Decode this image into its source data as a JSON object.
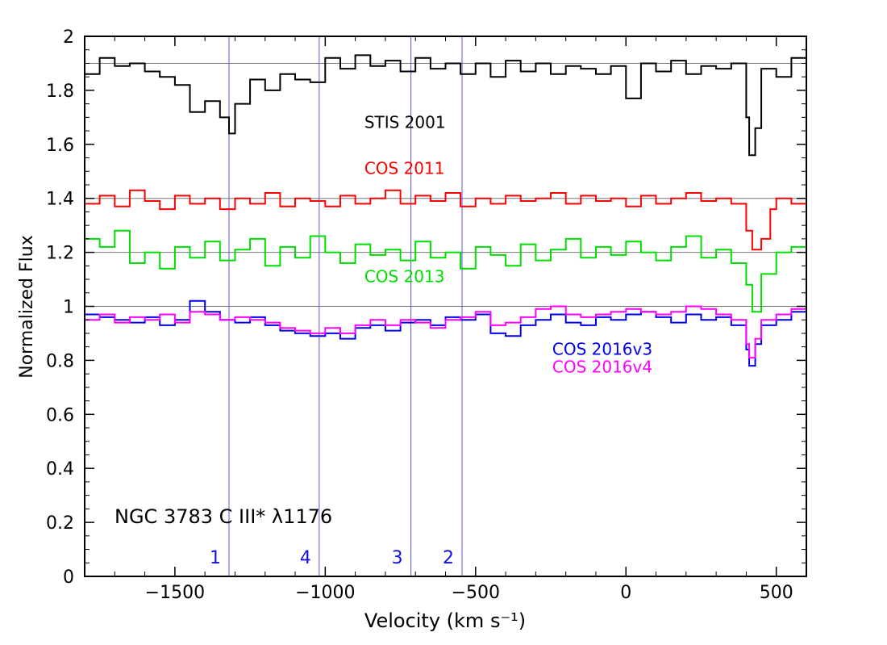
{
  "chart_data": {
    "type": "line",
    "title": "NGC 3783 C III* λ1176",
    "xlabel": "Velocity (km s⁻¹)",
    "ylabel": "Normalized Flux",
    "xlim": [
      -1800,
      600
    ],
    "ylim": [
      0,
      2
    ],
    "xticks": [
      -1500,
      -1000,
      -500,
      0,
      500
    ],
    "xtick_labels": [
      "−1500",
      "−1000",
      "−500",
      "0",
      "500"
    ],
    "yticks": [
      0,
      0.2,
      0.4,
      0.6,
      0.8,
      1,
      1.2,
      1.4,
      1.6,
      1.8,
      2
    ],
    "ytick_labels": [
      "0",
      "0.2",
      "0.4",
      "0.6",
      "0.8",
      "1",
      "1.2",
      "1.4",
      "1.6",
      "1.8",
      "2"
    ],
    "reference_lines": [
      1.9,
      1.4,
      1.2,
      1.0
    ],
    "components": [
      {
        "label": "1",
        "x": -1320
      },
      {
        "label": "4",
        "x": -1020
      },
      {
        "label": "3",
        "x": -715
      },
      {
        "label": "2",
        "x": -545
      }
    ],
    "series": [
      {
        "name": "STIS 2001",
        "color": "#000000",
        "label_x": -870,
        "label_y": 1.66,
        "points": [
          [
            -1800,
            1.86
          ],
          [
            -1750,
            1.92
          ],
          [
            -1700,
            1.89
          ],
          [
            -1650,
            1.9
          ],
          [
            -1600,
            1.87
          ],
          [
            -1550,
            1.85
          ],
          [
            -1500,
            1.82
          ],
          [
            -1450,
            1.72
          ],
          [
            -1400,
            1.76
          ],
          [
            -1350,
            1.7
          ],
          [
            -1320,
            1.64
          ],
          [
            -1300,
            1.75
          ],
          [
            -1250,
            1.84
          ],
          [
            -1200,
            1.8
          ],
          [
            -1150,
            1.86
          ],
          [
            -1100,
            1.84
          ],
          [
            -1050,
            1.83
          ],
          [
            -1000,
            1.92
          ],
          [
            -950,
            1.88
          ],
          [
            -900,
            1.93
          ],
          [
            -850,
            1.89
          ],
          [
            -800,
            1.91
          ],
          [
            -750,
            1.87
          ],
          [
            -700,
            1.92
          ],
          [
            -650,
            1.88
          ],
          [
            -600,
            1.9
          ],
          [
            -550,
            1.86
          ],
          [
            -500,
            1.9
          ],
          [
            -450,
            1.85
          ],
          [
            -400,
            1.91
          ],
          [
            -350,
            1.87
          ],
          [
            -300,
            1.9
          ],
          [
            -250,
            1.86
          ],
          [
            -200,
            1.89
          ],
          [
            -150,
            1.88
          ],
          [
            -100,
            1.86
          ],
          [
            -50,
            1.89
          ],
          [
            0,
            1.77
          ],
          [
            50,
            1.9
          ],
          [
            100,
            1.87
          ],
          [
            150,
            1.91
          ],
          [
            200,
            1.86
          ],
          [
            250,
            1.89
          ],
          [
            300,
            1.88
          ],
          [
            350,
            1.9
          ],
          [
            400,
            1.7
          ],
          [
            410,
            1.56
          ],
          [
            430,
            1.66
          ],
          [
            450,
            1.88
          ],
          [
            500,
            1.85
          ],
          [
            550,
            1.92
          ],
          [
            600,
            1.89
          ]
        ]
      },
      {
        "name": "COS 2011",
        "color": "#ff0000",
        "label_x": -870,
        "label_y": 1.49,
        "points": [
          [
            -1800,
            1.38
          ],
          [
            -1750,
            1.41
          ],
          [
            -1700,
            1.37
          ],
          [
            -1650,
            1.43
          ],
          [
            -1600,
            1.39
          ],
          [
            -1550,
            1.36
          ],
          [
            -1500,
            1.41
          ],
          [
            -1450,
            1.38
          ],
          [
            -1400,
            1.4
          ],
          [
            -1350,
            1.36
          ],
          [
            -1300,
            1.4
          ],
          [
            -1250,
            1.38
          ],
          [
            -1200,
            1.42
          ],
          [
            -1150,
            1.37
          ],
          [
            -1100,
            1.4
          ],
          [
            -1050,
            1.39
          ],
          [
            -1000,
            1.37
          ],
          [
            -950,
            1.41
          ],
          [
            -900,
            1.38
          ],
          [
            -850,
            1.4
          ],
          [
            -800,
            1.43
          ],
          [
            -750,
            1.38
          ],
          [
            -700,
            1.41
          ],
          [
            -650,
            1.39
          ],
          [
            -600,
            1.42
          ],
          [
            -550,
            1.37
          ],
          [
            -500,
            1.4
          ],
          [
            -450,
            1.38
          ],
          [
            -400,
            1.41
          ],
          [
            -350,
            1.39
          ],
          [
            -300,
            1.4
          ],
          [
            -250,
            1.42
          ],
          [
            -200,
            1.38
          ],
          [
            -150,
            1.41
          ],
          [
            -100,
            1.39
          ],
          [
            -50,
            1.4
          ],
          [
            0,
            1.37
          ],
          [
            50,
            1.41
          ],
          [
            100,
            1.38
          ],
          [
            150,
            1.4
          ],
          [
            200,
            1.42
          ],
          [
            250,
            1.39
          ],
          [
            300,
            1.4
          ],
          [
            350,
            1.38
          ],
          [
            400,
            1.28
          ],
          [
            420,
            1.21
          ],
          [
            450,
            1.25
          ],
          [
            480,
            1.36
          ],
          [
            500,
            1.4
          ],
          [
            550,
            1.38
          ],
          [
            600,
            1.37
          ]
        ]
      },
      {
        "name": "COS 2013",
        "color": "#00dd00",
        "label_x": -870,
        "label_y": 1.09,
        "points": [
          [
            -1800,
            1.25
          ],
          [
            -1750,
            1.22
          ],
          [
            -1700,
            1.28
          ],
          [
            -1650,
            1.16
          ],
          [
            -1600,
            1.2
          ],
          [
            -1550,
            1.14
          ],
          [
            -1500,
            1.22
          ],
          [
            -1450,
            1.18
          ],
          [
            -1400,
            1.24
          ],
          [
            -1350,
            1.17
          ],
          [
            -1300,
            1.21
          ],
          [
            -1250,
            1.25
          ],
          [
            -1200,
            1.15
          ],
          [
            -1150,
            1.22
          ],
          [
            -1100,
            1.18
          ],
          [
            -1050,
            1.26
          ],
          [
            -1000,
            1.2
          ],
          [
            -950,
            1.16
          ],
          [
            -900,
            1.23
          ],
          [
            -850,
            1.19
          ],
          [
            -800,
            1.21
          ],
          [
            -750,
            1.17
          ],
          [
            -700,
            1.24
          ],
          [
            -650,
            1.18
          ],
          [
            -600,
            1.2
          ],
          [
            -550,
            1.14
          ],
          [
            -500,
            1.22
          ],
          [
            -450,
            1.19
          ],
          [
            -400,
            1.15
          ],
          [
            -350,
            1.23
          ],
          [
            -300,
            1.17
          ],
          [
            -250,
            1.21
          ],
          [
            -200,
            1.25
          ],
          [
            -150,
            1.18
          ],
          [
            -100,
            1.22
          ],
          [
            -50,
            1.19
          ],
          [
            0,
            1.24
          ],
          [
            50,
            1.2
          ],
          [
            100,
            1.17
          ],
          [
            150,
            1.22
          ],
          [
            200,
            1.26
          ],
          [
            250,
            1.18
          ],
          [
            300,
            1.21
          ],
          [
            350,
            1.16
          ],
          [
            400,
            1.08
          ],
          [
            420,
            0.98
          ],
          [
            450,
            1.12
          ],
          [
            500,
            1.2
          ],
          [
            550,
            1.22
          ],
          [
            600,
            1.18
          ]
        ]
      },
      {
        "name": "COS 2016v3",
        "color": "#0000ee",
        "label_x": -245,
        "label_y": 0.82,
        "points": [
          [
            -1800,
            0.97
          ],
          [
            -1750,
            0.96
          ],
          [
            -1700,
            0.95
          ],
          [
            -1650,
            0.94
          ],
          [
            -1600,
            0.96
          ],
          [
            -1550,
            0.93
          ],
          [
            -1500,
            0.95
          ],
          [
            -1450,
            1.02
          ],
          [
            -1400,
            0.98
          ],
          [
            -1350,
            0.95
          ],
          [
            -1300,
            0.94
          ],
          [
            -1250,
            0.96
          ],
          [
            -1200,
            0.93
          ],
          [
            -1150,
            0.91
          ],
          [
            -1100,
            0.9
          ],
          [
            -1050,
            0.89
          ],
          [
            -1000,
            0.9
          ],
          [
            -950,
            0.88
          ],
          [
            -900,
            0.92
          ],
          [
            -850,
            0.93
          ],
          [
            -800,
            0.91
          ],
          [
            -750,
            0.94
          ],
          [
            -700,
            0.95
          ],
          [
            -650,
            0.93
          ],
          [
            -600,
            0.96
          ],
          [
            -550,
            0.95
          ],
          [
            -500,
            0.97
          ],
          [
            -450,
            0.9
          ],
          [
            -400,
            0.89
          ],
          [
            -350,
            0.93
          ],
          [
            -300,
            0.95
          ],
          [
            -250,
            0.97
          ],
          [
            -200,
            0.94
          ],
          [
            -150,
            0.93
          ],
          [
            -100,
            0.96
          ],
          [
            -50,
            0.95
          ],
          [
            0,
            0.97
          ],
          [
            50,
            0.98
          ],
          [
            100,
            0.96
          ],
          [
            150,
            0.94
          ],
          [
            200,
            0.97
          ],
          [
            250,
            0.95
          ],
          [
            300,
            0.96
          ],
          [
            350,
            0.93
          ],
          [
            400,
            0.84
          ],
          [
            410,
            0.78
          ],
          [
            430,
            0.86
          ],
          [
            450,
            0.93
          ],
          [
            500,
            0.95
          ],
          [
            550,
            0.98
          ],
          [
            600,
            1.0
          ]
        ]
      },
      {
        "name": "COS 2016v4",
        "color": "#ff00ff",
        "label_x": -245,
        "label_y": 0.755,
        "points": [
          [
            -1800,
            0.95
          ],
          [
            -1750,
            0.97
          ],
          [
            -1700,
            0.94
          ],
          [
            -1650,
            0.96
          ],
          [
            -1600,
            0.95
          ],
          [
            -1550,
            0.97
          ],
          [
            -1500,
            0.94
          ],
          [
            -1450,
            0.98
          ],
          [
            -1400,
            0.97
          ],
          [
            -1350,
            0.95
          ],
          [
            -1300,
            0.96
          ],
          [
            -1250,
            0.95
          ],
          [
            -1200,
            0.94
          ],
          [
            -1150,
            0.92
          ],
          [
            -1100,
            0.91
          ],
          [
            -1050,
            0.9
          ],
          [
            -1000,
            0.92
          ],
          [
            -950,
            0.9
          ],
          [
            -900,
            0.93
          ],
          [
            -850,
            0.95
          ],
          [
            -800,
            0.93
          ],
          [
            -750,
            0.95
          ],
          [
            -700,
            0.94
          ],
          [
            -650,
            0.92
          ],
          [
            -600,
            0.95
          ],
          [
            -550,
            0.96
          ],
          [
            -500,
            0.98
          ],
          [
            -450,
            0.93
          ],
          [
            -400,
            0.94
          ],
          [
            -350,
            0.96
          ],
          [
            -300,
            0.99
          ],
          [
            -250,
            1.0
          ],
          [
            -200,
            0.97
          ],
          [
            -150,
            0.96
          ],
          [
            -100,
            0.97
          ],
          [
            -50,
            0.98
          ],
          [
            0,
            0.99
          ],
          [
            50,
            0.98
          ],
          [
            100,
            0.97
          ],
          [
            150,
            0.98
          ],
          [
            200,
            1.0
          ],
          [
            250,
            0.99
          ],
          [
            300,
            0.97
          ],
          [
            350,
            0.95
          ],
          [
            400,
            0.86
          ],
          [
            410,
            0.81
          ],
          [
            430,
            0.88
          ],
          [
            450,
            0.95
          ],
          [
            500,
            0.97
          ],
          [
            550,
            0.99
          ],
          [
            600,
            1.02
          ]
        ]
      }
    ]
  }
}
